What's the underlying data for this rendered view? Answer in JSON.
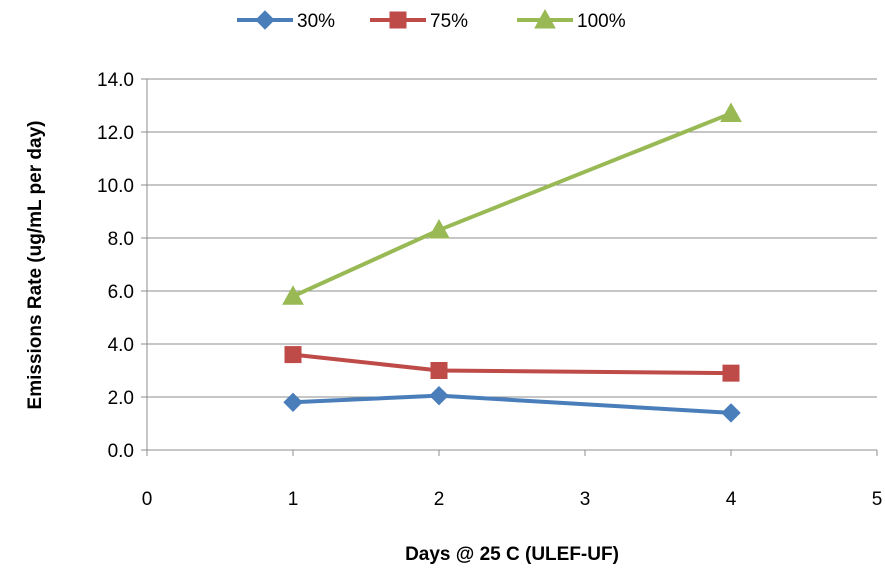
{
  "chart_data": {
    "type": "line",
    "title": "",
    "xlabel": "Days  @ 25 C (ULEF-UF)",
    "ylabel": "Emissions Rate  (ug/mL per day)",
    "xlim": [
      0,
      5
    ],
    "ylim": [
      0,
      14
    ],
    "xticks": [
      0,
      1,
      2,
      3,
      4,
      5
    ],
    "xtick_labels": [
      "0",
      "1",
      "2",
      "3",
      "4",
      "5"
    ],
    "yticks": [
      0,
      2,
      4,
      6,
      8,
      10,
      12,
      14
    ],
    "ytick_labels": [
      "0.0",
      "2.0",
      "4.0",
      "6.0",
      "8.0",
      "10.0",
      "12.0",
      "14.0"
    ],
    "grid": "horizontal",
    "legend_position": "top",
    "x": [
      1,
      2,
      4
    ],
    "series": [
      {
        "name": "30%",
        "color": "#4a7ebb",
        "marker": "diamond",
        "values": [
          1.8,
          2.05,
          1.4
        ]
      },
      {
        "name": "75%",
        "color": "#be4b48",
        "marker": "square",
        "values": [
          3.6,
          3.0,
          2.9
        ]
      },
      {
        "name": "100%",
        "color": "#98b954",
        "marker": "triangle",
        "values": [
          5.8,
          8.3,
          12.7
        ]
      }
    ]
  }
}
